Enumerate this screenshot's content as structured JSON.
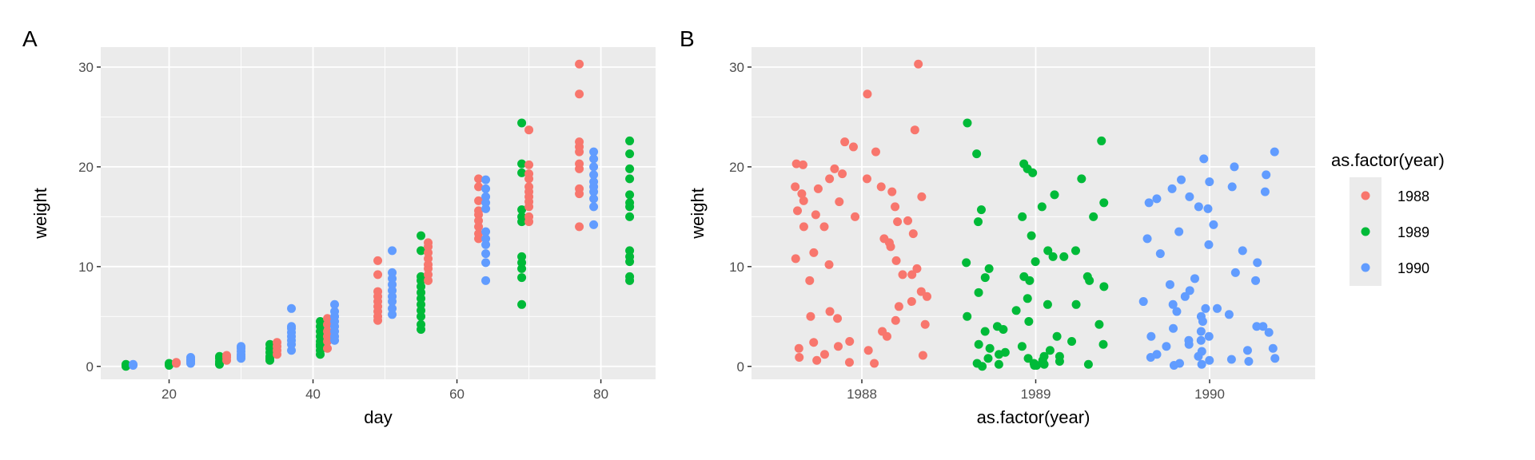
{
  "chart_data": [
    {
      "panel": "A",
      "type": "scatter",
      "xlabel": "day",
      "ylabel": "weight",
      "xlim": [
        10.5,
        87.6
      ],
      "ylim": [
        -1.3,
        32
      ],
      "xticks": [
        20,
        40,
        60,
        80
      ],
      "yticks": [
        0,
        10,
        20,
        30
      ],
      "grid": true,
      "groups": [
        {
          "day": 14,
          "year": "1989",
          "weights": [
            0.1,
            0.2,
            0.0
          ]
        },
        {
          "day": 15,
          "year": "1990",
          "weights": [
            0.1,
            0.2
          ]
        },
        {
          "day": 20,
          "year": "1989",
          "weights": [
            0.1,
            0.3,
            0.2
          ]
        },
        {
          "day": 21,
          "year": "1988",
          "weights": [
            0.3,
            0.4
          ]
        },
        {
          "day": 23,
          "year": "1990",
          "weights": [
            0.3,
            0.5,
            0.7,
            0.9,
            0.6
          ]
        },
        {
          "day": 27,
          "year": "1989",
          "weights": [
            0.2,
            0.5,
            0.8,
            1.0,
            0.3
          ]
        },
        {
          "day": 28,
          "year": "1988",
          "weights": [
            0.6,
            0.9,
            1.1
          ]
        },
        {
          "day": 30,
          "year": "1990",
          "weights": [
            0.8,
            1.2,
            1.5,
            1.8,
            2.0,
            1.0
          ]
        },
        {
          "day": 34,
          "year": "1989",
          "weights": [
            0.6,
            1.0,
            1.4,
            1.8,
            2.2,
            0.8
          ]
        },
        {
          "day": 35,
          "year": "1988",
          "weights": [
            1.2,
            1.6,
            2.0,
            2.4
          ]
        },
        {
          "day": 37,
          "year": "1990",
          "weights": [
            1.6,
            2.2,
            2.6,
            3.0,
            3.4,
            3.8,
            4.0,
            5.8
          ]
        },
        {
          "day": 41,
          "year": "1989",
          "weights": [
            1.2,
            1.6,
            2.0,
            2.5,
            3.0,
            3.5,
            4.0,
            4.5,
            2.2
          ]
        },
        {
          "day": 42,
          "year": "1988",
          "weights": [
            1.8,
            2.5,
            3.0,
            3.5,
            4.2,
            4.8
          ]
        },
        {
          "day": 43,
          "year": "1990",
          "weights": [
            2.6,
            3.0,
            3.5,
            4.0,
            4.5,
            5.0,
            5.5,
            6.2
          ]
        },
        {
          "day": 49,
          "year": "1988",
          "weights": [
            4.6,
            5.0,
            5.5,
            6.0,
            6.5,
            7.0,
            7.5,
            9.2,
            10.6
          ]
        },
        {
          "day": 51,
          "year": "1990",
          "weights": [
            5.2,
            5.8,
            6.5,
            7.0,
            7.6,
            8.2,
            8.8,
            9.4,
            11.6
          ]
        },
        {
          "day": 55,
          "year": "1989",
          "weights": [
            3.7,
            4.2,
            5.0,
            5.6,
            6.2,
            6.8,
            7.4,
            8.0,
            8.6,
            9.0,
            11.6,
            13.1
          ]
        },
        {
          "day": 56,
          "year": "1988",
          "weights": [
            8.6,
            9.2,
            9.8,
            10.2,
            10.8,
            11.4,
            12.0,
            12.4
          ]
        },
        {
          "day": 63,
          "year": "1988",
          "weights": [
            12.8,
            13.3,
            14.0,
            14.6,
            15.2,
            15.6,
            16.6,
            18.0,
            18.8
          ]
        },
        {
          "day": 64,
          "year": "1990",
          "weights": [
            8.6,
            10.4,
            11.3,
            12.2,
            12.8,
            13.5,
            15.8,
            16.4,
            17.0,
            17.8,
            18.7
          ]
        },
        {
          "day": 69,
          "year": "1989",
          "weights": [
            6.2,
            8.9,
            9.8,
            10.4,
            11.0,
            14.5,
            15.0,
            15.7,
            19.4,
            20.3,
            24.4
          ]
        },
        {
          "day": 70,
          "year": "1988",
          "weights": [
            14.5,
            15.0,
            16.0,
            16.5,
            17.0,
            17.5,
            18.0,
            18.8,
            19.3,
            20.2,
            23.7
          ]
        },
        {
          "day": 77,
          "year": "1988",
          "weights": [
            14.0,
            17.3,
            17.8,
            19.8,
            20.3,
            21.5,
            22.0,
            22.5,
            27.3,
            30.3
          ]
        },
        {
          "day": 79,
          "year": "1990",
          "weights": [
            14.2,
            16.0,
            16.8,
            17.5,
            18.0,
            18.5,
            19.2,
            20.0,
            20.8,
            21.5
          ]
        },
        {
          "day": 84,
          "year": "1989",
          "weights": [
            8.6,
            9.0,
            10.5,
            11.0,
            11.6,
            15.0,
            16.0,
            16.4,
            17.2,
            18.8,
            19.8,
            21.3,
            22.6
          ]
        }
      ]
    },
    {
      "panel": "B",
      "type": "scatter",
      "xlabel": "as.factor(year)",
      "ylabel": "weight",
      "categories": [
        "1988",
        "1989",
        "1990"
      ],
      "jitter_width": 0.4,
      "ylim": [
        -1.3,
        32
      ],
      "yticks": [
        0,
        10,
        20,
        30
      ],
      "grid": true,
      "note": "same observations as panel A, horizontally jittered by year"
    }
  ],
  "legend": {
    "title": "as.factor(year)",
    "placement": "right",
    "items": [
      {
        "label": "1988",
        "color": "#F8766D"
      },
      {
        "label": "1989",
        "color": "#00BA38"
      },
      {
        "label": "1990",
        "color": "#619CFF"
      }
    ]
  },
  "panel_tags": [
    "A",
    "B"
  ]
}
